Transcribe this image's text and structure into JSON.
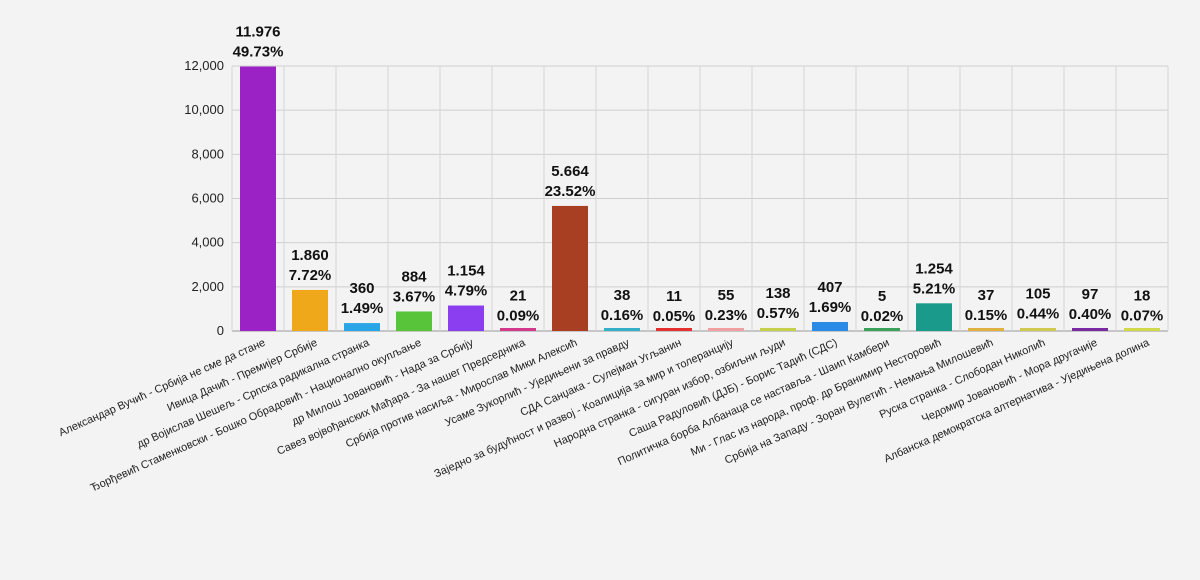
{
  "chart_data": {
    "type": "bar",
    "title": "",
    "xlabel": "",
    "ylabel": "",
    "ylim": [
      0,
      12000
    ],
    "yticks": [
      "0",
      "2,000",
      "4,000",
      "6,000",
      "8,000",
      "10,000",
      "12,000"
    ],
    "ytick_values": [
      0,
      2000,
      4000,
      6000,
      8000,
      10000,
      12000
    ],
    "grid": true,
    "categories": [
      "Александар Вучић - Србија не сме да стане",
      "Ивица Дачић - Премијер Србије",
      "др Војислав Шешељ - Српска радикална странка",
      "Ђорђевић Стаменковски - Бошко Обрадовић - Национално окупљање",
      "др Милош Јовановић - Нада за Србију",
      "Савез војвођанских Мађара - За нашег Председника",
      "Србија против насиља - Мирослав Мики Алексић",
      "Усаме Зукорлић - Уједињени за правду",
      "СДА Санџака - Сулејман Угљанин",
      "Заједно за будућност и развој - Коалиција за мир и толеранцију",
      "Народна странка - сигуран избор, озбиљни људи",
      "Саша Радуловић (ДЈБ) - Борис Тадић (СДС)",
      "Политичка борба Албанаца се наставља - Шаип Камбери",
      "Ми - Глас из народа, проф. др Бранимир Несторовић",
      "Србија на Западу - Зоран Вулетић - Немања Милошевић",
      "Руска странка - Слободан Николић",
      "Чедомир Јовановић - Мора другачије",
      "Албанска демократска алтернатива - Уједињена долина"
    ],
    "values": [
      11976,
      1860,
      360,
      884,
      1154,
      21,
      5664,
      38,
      11,
      55,
      138,
      407,
      5,
      1254,
      37,
      105,
      97,
      18
    ],
    "value_labels": [
      "11.976",
      "1.860",
      "360",
      "884",
      "1.154",
      "21",
      "5.664",
      "38",
      "11",
      "55",
      "138",
      "407",
      "5",
      "1.254",
      "37",
      "105",
      "97",
      "18"
    ],
    "percent_labels": [
      "49.73%",
      "7.72%",
      "1.49%",
      "3.67%",
      "4.79%",
      "0.09%",
      "23.52%",
      "0.16%",
      "0.05%",
      "0.23%",
      "0.57%",
      "1.69%",
      "0.02%",
      "5.21%",
      "0.15%",
      "0.44%",
      "0.40%",
      "0.07%"
    ],
    "colors": [
      "#9b22c4",
      "#f0a81b",
      "#2aa6e6",
      "#58c43a",
      "#8a3ef0",
      "#d23a8c",
      "#a83f22",
      "#36b0c8",
      "#e53030",
      "#f0a0a0",
      "#c6cf4a",
      "#2a8be6",
      "#3aa05a",
      "#1a9a8a",
      "#e0b040",
      "#d0c850",
      "#7a2aa0",
      "#cfd94a"
    ]
  }
}
